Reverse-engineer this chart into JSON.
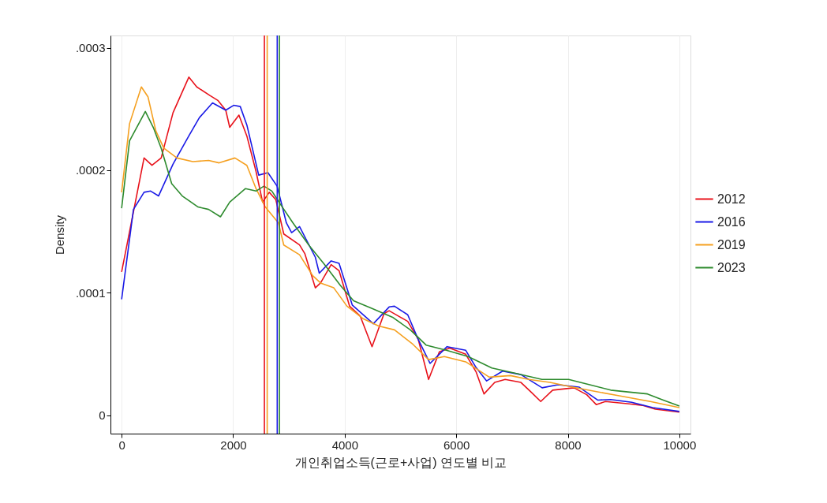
{
  "chart_data": {
    "type": "line",
    "xlabel": "개인취업소득(근로+사업) 연도별 비교",
    "ylabel": "Density",
    "xlim": [
      -200,
      10200
    ],
    "xticks": [
      0,
      2000,
      4000,
      6000,
      8000,
      10000
    ],
    "ylim": [
      -1.5e-05,
      0.00031
    ],
    "yticks": [
      {
        "value": 0,
        "label": "0"
      },
      {
        "value": 0.0001,
        "label": ".0001"
      },
      {
        "value": 0.0002,
        "label": ".0002"
      },
      {
        "value": 0.0003,
        "label": ".0003"
      }
    ],
    "grid": "x",
    "legend": "right",
    "line_style": "solid",
    "marker": "none",
    "series": [
      {
        "name": "2012",
        "color": "#e8121b",
        "x": [
          0,
          402,
          544,
          709,
          922,
          1205,
          1347,
          1583,
          1725,
          1867,
          1938,
          2103,
          2245,
          2410,
          2528,
          2647,
          2765,
          2907,
          3190,
          3284,
          3473,
          3567,
          3757,
          3899,
          4088,
          4277,
          4490,
          4706,
          4796,
          5130,
          5317,
          5504,
          5697,
          5883,
          6170,
          6355,
          6498,
          6690,
          6877,
          7160,
          7347,
          7515,
          7728,
          8110,
          8340,
          8510,
          8675,
          9100,
          9335,
          9570,
          10000
        ],
        "values": [
          0.000117,
          0.00021,
          0.000204,
          0.00021,
          0.000247,
          0.000276,
          0.000268,
          0.000261,
          0.000257,
          0.000249,
          0.000235,
          0.000245,
          0.000228,
          0.000199,
          0.000174,
          0.000182,
          0.000176,
          0.000148,
          0.000139,
          0.000132,
          0.000104,
          0.000108,
          0.000123,
          0.000118,
          8.9e-05,
          8.1e-05,
          5.6e-05,
          8.3e-05,
          8.53e-05,
          7.66e-05,
          6.22e-05,
          2.92e-05,
          5.17e-05,
          5.48e-05,
          4.98e-05,
          3.55e-05,
          1.74e-05,
          2.68e-05,
          2.92e-05,
          2.68e-05,
          1.87e-05,
          1.12e-05,
          2.05e-05,
          2.24e-05,
          1.68e-05,
          8.7e-06,
          1.12e-05,
          9.3e-06,
          8.1e-06,
          5e-06,
          2.5e-06
        ]
      },
      {
        "name": "2016",
        "color": "#1a1ae6",
        "x": [
          0,
          212,
          402,
          520,
          662,
          922,
          1205,
          1395,
          1630,
          1867,
          2009,
          2127,
          2245,
          2458,
          2623,
          2788,
          2954,
          3048,
          3190,
          3473,
          3544,
          3757,
          3899,
          4135,
          4513,
          4797,
          4892,
          5130,
          5317,
          5530,
          5835,
          6170,
          6355,
          6545,
          6830,
          7160,
          7540,
          7825,
          8200,
          8535,
          8770,
          9145,
          9523,
          10000
        ],
        "values": [
          9.46e-05,
          0.000168,
          0.000182,
          0.000183,
          0.000179,
          0.000205,
          0.000228,
          0.000243,
          0.000255,
          0.000249,
          0.000253,
          0.000252,
          0.000237,
          0.000196,
          0.000198,
          0.000187,
          0.000157,
          0.000149,
          0.000154,
          0.000129,
          0.000116,
          0.000126,
          0.000124,
          9e-05,
          7.47e-05,
          8.84e-05,
          8.9e-05,
          8.2e-05,
          6.2e-05,
          4.23e-05,
          5.6e-05,
          5.3e-05,
          3.9e-05,
          2.8e-05,
          3.6e-05,
          3.32e-05,
          2.24e-05,
          2.49e-05,
          2.3e-05,
          1.24e-05,
          1.28e-05,
          1.06e-05,
          6.2e-06,
          3.1e-06
        ]
      },
      {
        "name": "2019",
        "color": "#f5a020",
        "x": [
          0,
          142,
          354,
          472,
          614,
          756,
          992,
          1276,
          1560,
          1749,
          2032,
          2245,
          2410,
          2576,
          2812,
          2907,
          3190,
          3426,
          3567,
          3804,
          4041,
          4324,
          4608,
          4892,
          5223,
          5504,
          5787,
          6170,
          6592,
          6970,
          7300,
          7680,
          8015,
          8440,
          8960,
          9480,
          10000
        ],
        "values": [
          0.000182,
          0.000238,
          0.000268,
          0.00026,
          0.000232,
          0.000218,
          0.00021,
          0.000207,
          0.000208,
          0.000206,
          0.00021,
          0.000204,
          0.000185,
          0.00017,
          0.000157,
          0.000139,
          0.000131,
          0.000114,
          0.000108,
          0.000104,
          8.9e-05,
          7.9e-05,
          7.28e-05,
          6.97e-05,
          5.79e-05,
          4.54e-05,
          4.79e-05,
          4.36e-05,
          3.11e-05,
          3.24e-05,
          2.92e-05,
          2.68e-05,
          2.36e-05,
          1.99e-05,
          1.56e-05,
          1.12e-05,
          6.2e-06
        ]
      },
      {
        "name": "2023",
        "color": "#2e8b2e",
        "x": [
          0,
          142,
          425,
          567,
          709,
          898,
          1087,
          1371,
          1560,
          1772,
          1938,
          2221,
          2410,
          2552,
          2694,
          2836,
          3072,
          3355,
          3638,
          3922,
          4159,
          4490,
          4868,
          5176,
          5459,
          5835,
          6213,
          6638,
          7064,
          7537,
          8015,
          8393,
          8770,
          9145,
          9428,
          9712,
          10000
        ],
        "values": [
          0.000169,
          0.000224,
          0.000248,
          0.000235,
          0.000218,
          0.000189,
          0.000179,
          0.00017,
          0.000168,
          0.000162,
          0.000174,
          0.000185,
          0.000183,
          0.000187,
          0.000183,
          0.000173,
          0.000157,
          0.000139,
          0.000123,
          0.000106,
          9.34e-05,
          8.71e-05,
          7.97e-05,
          6.97e-05,
          5.73e-05,
          5.29e-05,
          4.79e-05,
          3.86e-05,
          3.42e-05,
          2.92e-05,
          2.92e-05,
          2.49e-05,
          2.05e-05,
          1.87e-05,
          1.74e-05,
          1.24e-05,
          7.5e-06
        ]
      }
    ],
    "ref_lines": [
      {
        "axis": "x",
        "value": 2560,
        "color": "#e8121b"
      },
      {
        "axis": "x",
        "value": 2610,
        "color": "#f5a020"
      },
      {
        "axis": "x",
        "value": 2790,
        "color": "#1a1ae6"
      },
      {
        "axis": "x",
        "value": 2830,
        "color": "#2e8b2e"
      }
    ]
  }
}
